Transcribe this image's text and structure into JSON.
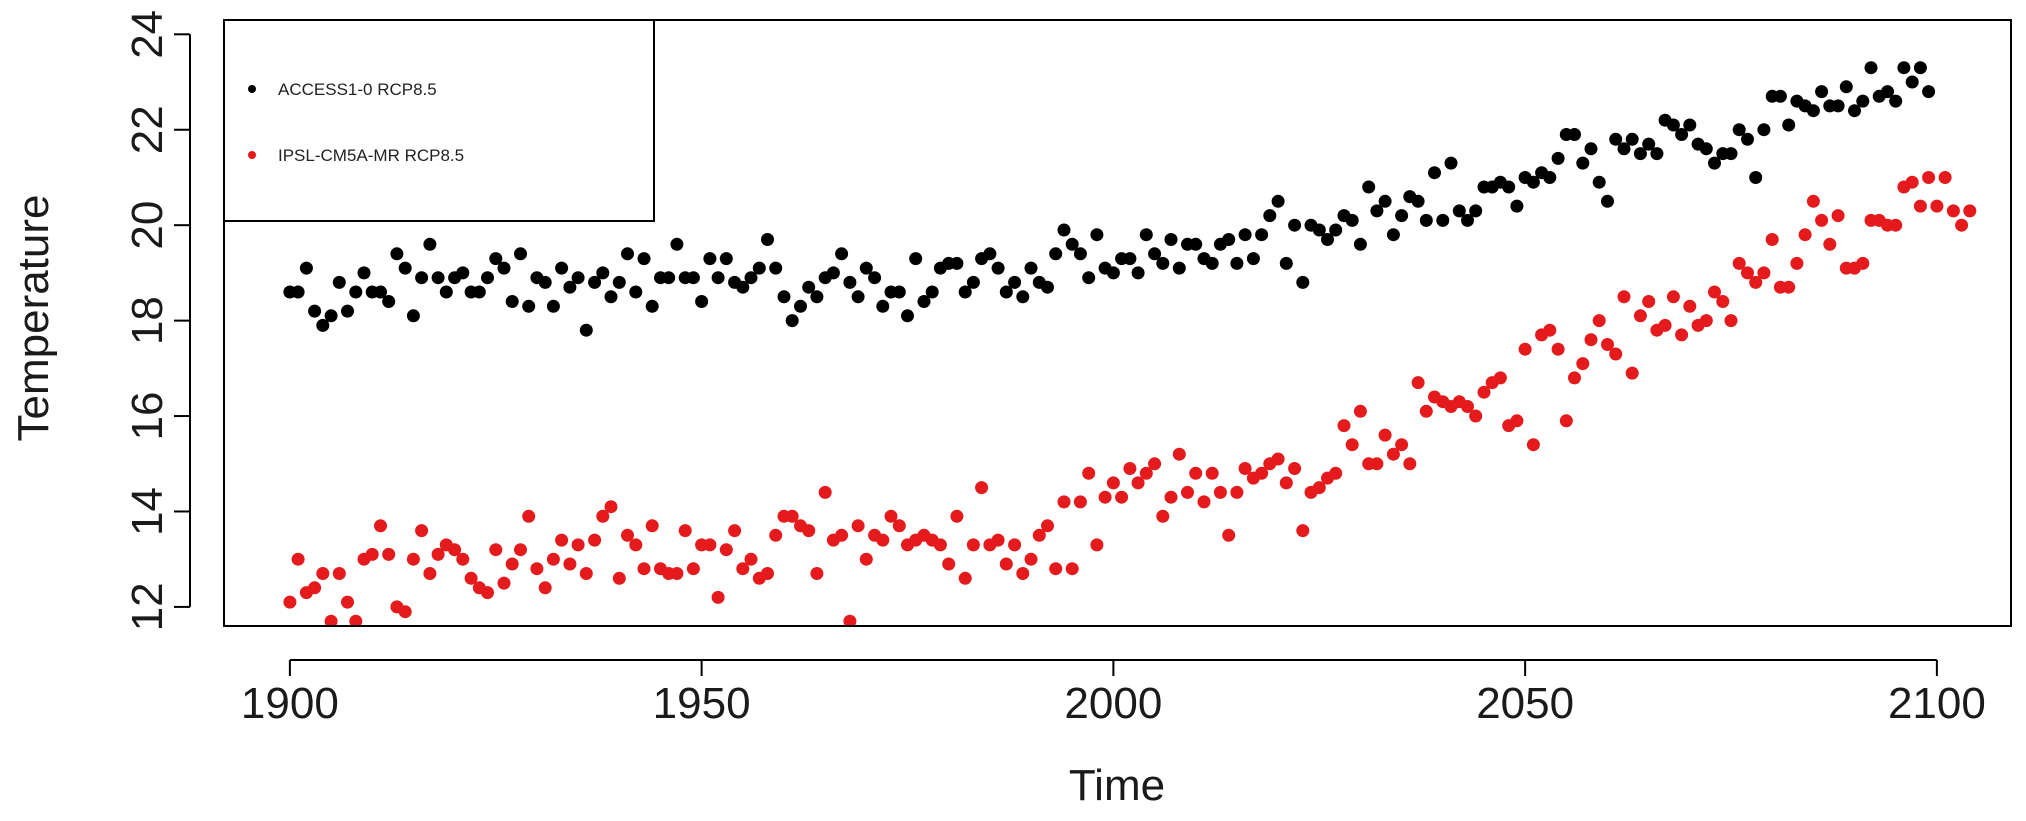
{
  "chart_data": {
    "type": "scatter",
    "title": "",
    "xlabel": "Time",
    "ylabel": "Temperature",
    "xlim": [
      1892,
      2109
    ],
    "ylim": [
      11.6,
      24.3
    ],
    "x_ticks": [
      "1900",
      "1950",
      "2000",
      "2050",
      "2100"
    ],
    "y_ticks": [
      "12",
      "14",
      "16",
      "18",
      "20",
      "22",
      "24"
    ],
    "grid": false,
    "legend_position": "top-left",
    "legend": [
      "ACCESS1-0 RCP8.5",
      "IPSL-CM5A-MR RCP8.5"
    ],
    "series": [
      {
        "name": "ACCESS1-0 RCP8.5",
        "color": "#000000",
        "x_start": 1900,
        "x_step": 1,
        "values": [
          18.6,
          18.6,
          19.1,
          18.2,
          17.9,
          18.1,
          18.8,
          18.2,
          18.6,
          19.0,
          18.6,
          18.6,
          18.4,
          19.4,
          19.1,
          18.1,
          18.9,
          19.6,
          18.9,
          18.6,
          18.9,
          19.0,
          18.6,
          18.6,
          18.9,
          19.3,
          19.1,
          18.4,
          19.4,
          18.3,
          18.9,
          18.8,
          18.3,
          19.1,
          18.7,
          18.9,
          17.8,
          18.8,
          19.0,
          18.5,
          18.8,
          19.4,
          18.6,
          19.3,
          18.3,
          18.9,
          18.9,
          19.6,
          18.9,
          18.9,
          18.4,
          19.3,
          18.9,
          19.3,
          18.8,
          18.7,
          18.9,
          19.1,
          19.7,
          19.1,
          18.5,
          18.0,
          18.3,
          18.7,
          18.5,
          18.9,
          19.0,
          19.4,
          18.8,
          18.5,
          19.1,
          18.9,
          18.3,
          18.6,
          18.6,
          18.1,
          19.3,
          18.4,
          18.6,
          19.1,
          19.2,
          19.2,
          18.6,
          18.8,
          19.3,
          19.4,
          19.1,
          18.6,
          18.8,
          18.5,
          19.1,
          18.8,
          18.7,
          19.4,
          19.9,
          19.6,
          19.4,
          18.9,
          19.8,
          19.1,
          19.0,
          19.3,
          19.3,
          19.0,
          19.8,
          19.4,
          19.2,
          19.7,
          19.1,
          19.6,
          19.6,
          19.3,
          19.2,
          19.6,
          19.7,
          19.2,
          19.8,
          19.3,
          19.8,
          20.2,
          20.5,
          19.2,
          20.0,
          18.8,
          20.0,
          19.9,
          19.7,
          19.9,
          20.2,
          20.1,
          19.6,
          20.8,
          20.3,
          20.5,
          19.8,
          20.2,
          20.6,
          20.5,
          20.1,
          21.1,
          20.1,
          21.3,
          20.3,
          20.1,
          20.3,
          20.8,
          20.8,
          20.9,
          20.8,
          20.4,
          21.0,
          20.9,
          21.1,
          21.0,
          21.4,
          21.9,
          21.9,
          21.3,
          21.6,
          20.9,
          20.5,
          21.8,
          21.6,
          21.8,
          21.5,
          21.7,
          21.5,
          22.2,
          22.1,
          21.9,
          22.1,
          21.7,
          21.6,
          21.3,
          21.5,
          21.5,
          22.0,
          21.8,
          21.0,
          22.0,
          22.7,
          22.7,
          22.1,
          22.6,
          22.5,
          22.4,
          22.8,
          22.5,
          22.5,
          22.9,
          22.4,
          22.6,
          23.3,
          22.7,
          22.8,
          22.6,
          23.3,
          23.0,
          23.3,
          22.8
        ]
      },
      {
        "name": "IPSL-CM5A-MR RCP8.5",
        "color": "#e41a1c",
        "x_start": 1900,
        "x_step": 1,
        "values": [
          12.1,
          13.0,
          12.3,
          12.4,
          12.7,
          11.7,
          12.7,
          12.1,
          11.7,
          13.0,
          13.1,
          13.7,
          13.1,
          12.0,
          11.9,
          13.0,
          13.6,
          12.7,
          13.1,
          13.3,
          13.2,
          13.0,
          12.6,
          12.4,
          12.3,
          13.2,
          12.5,
          12.9,
          13.2,
          13.9,
          12.8,
          12.4,
          13.0,
          13.4,
          12.9,
          13.3,
          12.7,
          13.4,
          13.9,
          14.1,
          12.6,
          13.5,
          13.3,
          12.8,
          13.7,
          12.8,
          12.7,
          12.7,
          13.6,
          12.8,
          13.3,
          13.3,
          12.2,
          13.2,
          13.6,
          12.8,
          13.0,
          12.6,
          12.7,
          13.5,
          13.9,
          13.9,
          13.7,
          13.6,
          12.7,
          14.4,
          13.4,
          13.5,
          11.7,
          13.7,
          13.0,
          13.5,
          13.4,
          13.9,
          13.7,
          13.3,
          13.4,
          13.5,
          13.4,
          13.3,
          12.9,
          13.9,
          12.6,
          13.3,
          14.5,
          13.3,
          13.4,
          12.9,
          13.3,
          12.7,
          13.0,
          13.5,
          13.7,
          12.8,
          14.2,
          12.8,
          14.2,
          14.8,
          13.3,
          14.3,
          14.6,
          14.3,
          14.9,
          14.6,
          14.8,
          15.0,
          13.9,
          14.3,
          15.2,
          14.4,
          14.8,
          14.2,
          14.8,
          14.4,
          13.5,
          14.4,
          14.9,
          14.7,
          14.8,
          15.0,
          15.1,
          14.6,
          14.9,
          13.6,
          14.4,
          14.5,
          14.7,
          14.8,
          15.8,
          15.4,
          16.1,
          15.0,
          15.0,
          15.6,
          15.2,
          15.4,
          15.0,
          16.7,
          16.1,
          16.4,
          16.3,
          16.2,
          16.3,
          16.2,
          16.0,
          16.5,
          16.7,
          16.8,
          15.8,
          15.9,
          17.4,
          15.4,
          17.7,
          17.8,
          17.4,
          15.9,
          16.8,
          17.1,
          17.6,
          18.0,
          17.5,
          17.3,
          18.5,
          16.9,
          18.1,
          18.4,
          17.8,
          17.9,
          18.5,
          17.7,
          18.3,
          17.9,
          18.0,
          18.6,
          18.4,
          18.0,
          19.2,
          19.0,
          18.8,
          19.0,
          19.7,
          18.7,
          18.7,
          19.2,
          19.8,
          20.5,
          20.1,
          19.6,
          20.2,
          19.1,
          19.1,
          19.2,
          20.1,
          20.1,
          20.0,
          20.0,
          20.8,
          20.9,
          20.4,
          21.0,
          20.4,
          21.0,
          20.3,
          20.0,
          20.3
        ]
      }
    ]
  }
}
